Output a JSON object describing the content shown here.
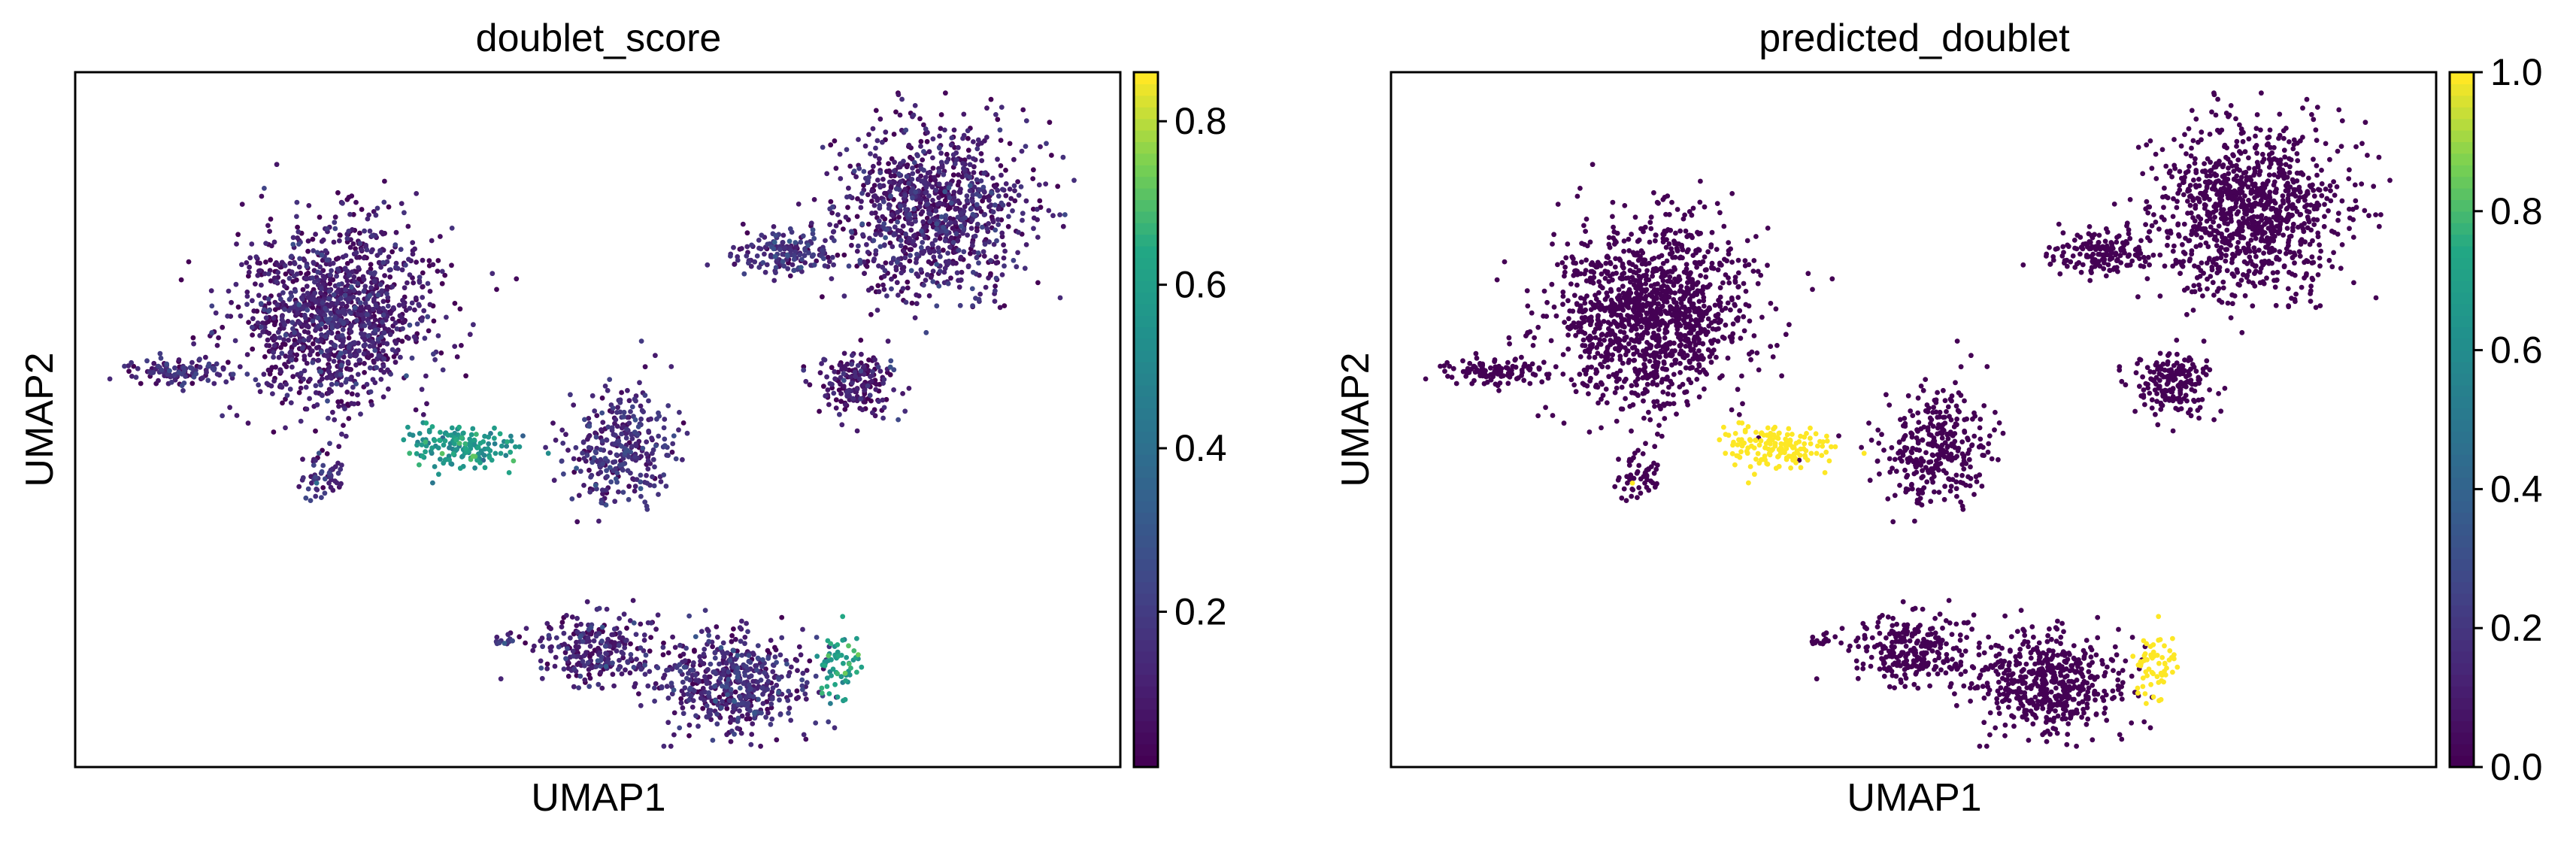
{
  "chart_data": [
    {
      "type": "scatter",
      "title": "doublet_score",
      "xlabel": "UMAP1",
      "ylabel": "UMAP2",
      "colormap": "viridis",
      "color_range": [
        0.01,
        0.86
      ],
      "colorbar_ticks": [
        "0.2",
        "0.4",
        "0.6",
        "0.8"
      ],
      "colorbar_tick_values": [
        0.2,
        0.4,
        0.6,
        0.8
      ],
      "xticks": false,
      "yticks": false,
      "clusters": [
        {
          "cx": 0.25,
          "cy": 0.65,
          "rx": 0.09,
          "ry": 0.13,
          "n": 1300,
          "value": 0.08
        },
        {
          "cx": 0.1,
          "cy": 0.57,
          "rx": 0.05,
          "ry": 0.02,
          "n": 120,
          "value": 0.12
        },
        {
          "cx": 0.37,
          "cy": 0.46,
          "rx": 0.05,
          "ry": 0.03,
          "n": 160,
          "value": 0.55
        },
        {
          "cx": 0.24,
          "cy": 0.42,
          "rx": 0.02,
          "ry": 0.04,
          "n": 60,
          "value": 0.12
        },
        {
          "cx": 0.82,
          "cy": 0.8,
          "rx": 0.09,
          "ry": 0.12,
          "n": 1000,
          "value": 0.09
        },
        {
          "cx": 0.68,
          "cy": 0.74,
          "rx": 0.05,
          "ry": 0.03,
          "n": 170,
          "value": 0.14
        },
        {
          "cx": 0.75,
          "cy": 0.55,
          "rx": 0.04,
          "ry": 0.05,
          "n": 180,
          "value": 0.07
        },
        {
          "cx": 0.52,
          "cy": 0.46,
          "rx": 0.05,
          "ry": 0.08,
          "n": 320,
          "value": 0.13
        },
        {
          "cx": 0.5,
          "cy": 0.17,
          "rx": 0.06,
          "ry": 0.05,
          "n": 260,
          "value": 0.1
        },
        {
          "cx": 0.63,
          "cy": 0.12,
          "rx": 0.07,
          "ry": 0.07,
          "n": 520,
          "value": 0.12
        },
        {
          "cx": 0.73,
          "cy": 0.15,
          "rx": 0.02,
          "ry": 0.05,
          "n": 60,
          "value": 0.6
        },
        {
          "cx": 0.41,
          "cy": 0.18,
          "rx": 0.01,
          "ry": 0.01,
          "n": 14,
          "value": 0.15
        }
      ]
    },
    {
      "type": "scatter",
      "title": "predicted_doublet",
      "xlabel": "UMAP1",
      "ylabel": "UMAP2",
      "colormap": "viridis",
      "color_range": [
        0.0,
        1.0
      ],
      "colorbar_ticks": [
        "0.0",
        "0.2",
        "0.4",
        "0.6",
        "0.8",
        "1.0"
      ],
      "colorbar_tick_values": [
        0.0,
        0.2,
        0.4,
        0.6,
        0.8,
        1.0
      ],
      "xticks": false,
      "yticks": false,
      "values": [
        0,
        1
      ]
    }
  ]
}
